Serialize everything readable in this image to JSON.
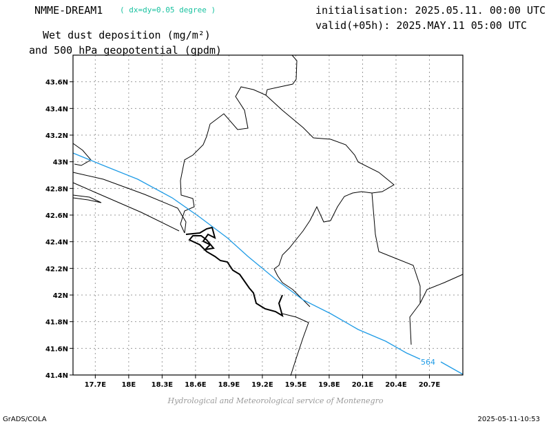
{
  "header": {
    "model": "NMME-DREAM1",
    "resolution": "( dx=dy=0.05 degree )",
    "initialisation": "initialisation: 2025.05.11. 00:00 UTC",
    "valid": "valid(+05h): 2025.MAY.11 05:00 UTC",
    "title_line1": "Wet dust deposition (mg/m²)",
    "title_line2": "and 500 hPa geopotential (gpdm)"
  },
  "map": {
    "lon_range": [
      17.5,
      21.0
    ],
    "lat_range": [
      41.4,
      43.8
    ],
    "lon_ticks": [
      "17.7E",
      "18E",
      "18.3E",
      "18.6E",
      "18.9E",
      "19.2E",
      "19.5E",
      "19.8E",
      "20.1E",
      "20.4E",
      "20.7E"
    ],
    "lat_ticks": [
      "43.6N",
      "43.4N",
      "43.2N",
      "43N",
      "42.8N",
      "42.6N",
      "42.4N",
      "42.2N",
      "42N",
      "41.8N",
      "41.6N",
      "41.4N"
    ],
    "grid": "dotted",
    "contour_color": "#1e9be6",
    "contour_label": "564"
  },
  "credit": "Hydrological and Meteorological service of Montenegro",
  "footer": {
    "left": "GrADS/COLA",
    "right": "2025-05-11-10:53"
  }
}
